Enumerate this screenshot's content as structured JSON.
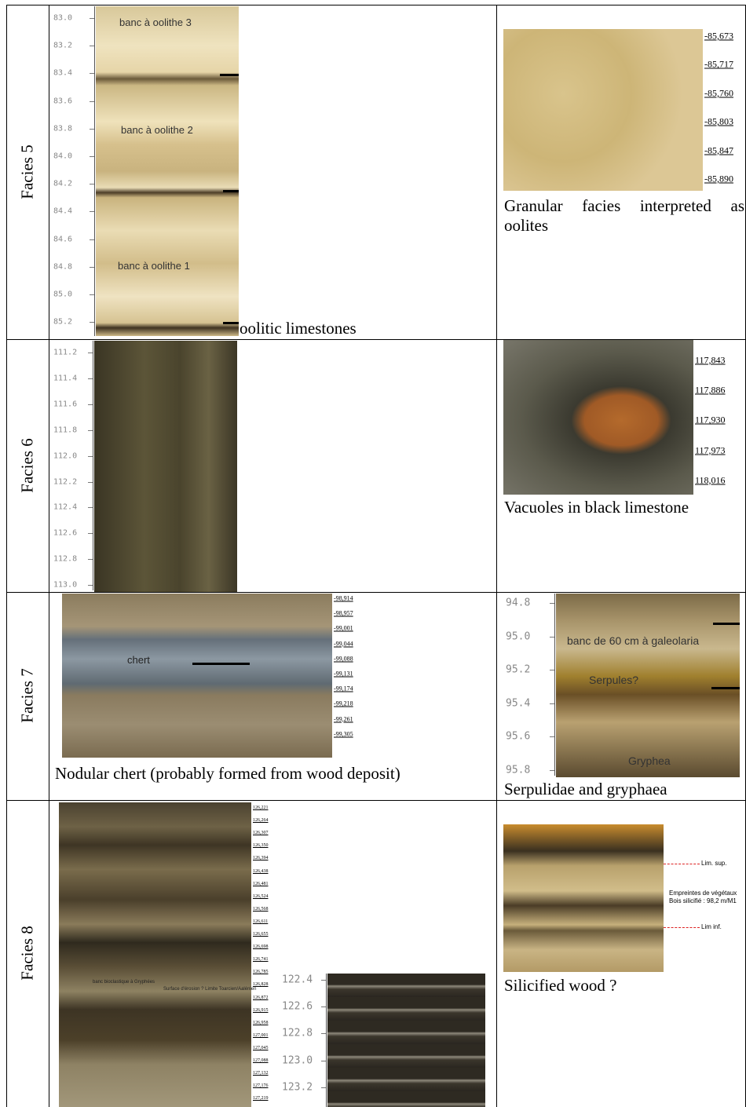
{
  "rows": [
    {
      "label": "Facies 5",
      "core": {
        "ticks": [
          "83.0",
          "83.2",
          "83.4",
          "83.6",
          "83.8",
          "84.0",
          "84.2",
          "84.4",
          "84.6",
          "84.8",
          "85.0",
          "85.2"
        ],
        "notes": [
          "banc à oolithe 3",
          "banc à oolithe 2",
          "banc à oolithe 1"
        ]
      },
      "core_caption": "oolitic limestones",
      "photo": {
        "ticks": [
          "-85,673",
          "-85,717",
          "-85,760",
          "-85,803",
          "-85,847",
          "-85,890"
        ]
      },
      "caption": "Granular facies interpreted as oolites"
    },
    {
      "label": "Facies 6",
      "core": {
        "ticks": [
          "111.2",
          "111.4",
          "111.6",
          "111.8",
          "112.0",
          "112.2",
          "112.4",
          "112.6",
          "112.8",
          "113.0"
        ]
      },
      "photo": {
        "ticks": [
          "117,843",
          "117,886",
          "117,930",
          "117,973",
          "118,016"
        ]
      },
      "caption": "Vacuoles in black limestone"
    },
    {
      "label": "Facies 7",
      "photo_left": {
        "ticks": [
          "-98,914",
          "-98,957",
          "-99,001",
          "-99,044",
          "-99,088",
          "-99,131",
          "-99,174",
          "-99,218",
          "-99,261",
          "-99,305"
        ],
        "note": "chert"
      },
      "caption_left": "Nodular chert (probably formed from wood deposit)",
      "core": {
        "ticks": [
          "94.8",
          "95.0",
          "95.2",
          "95.4",
          "95.6",
          "95.8"
        ],
        "notes": [
          "banc de 60 cm à galeolaria",
          "Serpules?",
          "Gryphea"
        ]
      },
      "caption": "Serpulidae and gryphaea"
    },
    {
      "label": "Facies 8",
      "core_left": {
        "ticks": [
          "126,221",
          "126,264",
          "126,307",
          "126,350",
          "126,394",
          "126,438",
          "126,481",
          "126,524",
          "126,568",
          "126,611",
          "126,655",
          "126,698",
          "126,741",
          "126,785",
          "126,828",
          "126,872",
          "126,915",
          "126,958",
          "127,001",
          "127,045",
          "127,088",
          "127,132",
          "127,176",
          "127,219"
        ],
        "notes": [
          "banc bioclastique à Gryphées",
          "Surface d'érosion ? Limite Toarcien/Aalénien"
        ]
      },
      "core": {
        "ticks": [
          "122.4",
          "122.6",
          "122.8",
          "123.0",
          "123.2"
        ]
      },
      "photo": {
        "notes": [
          "Lim. sup.",
          "Empreintes de végétaux",
          "Bois silicifié : 98,2 m/M1",
          "Lim inf."
        ]
      },
      "caption": "Silicified wood ?"
    }
  ]
}
